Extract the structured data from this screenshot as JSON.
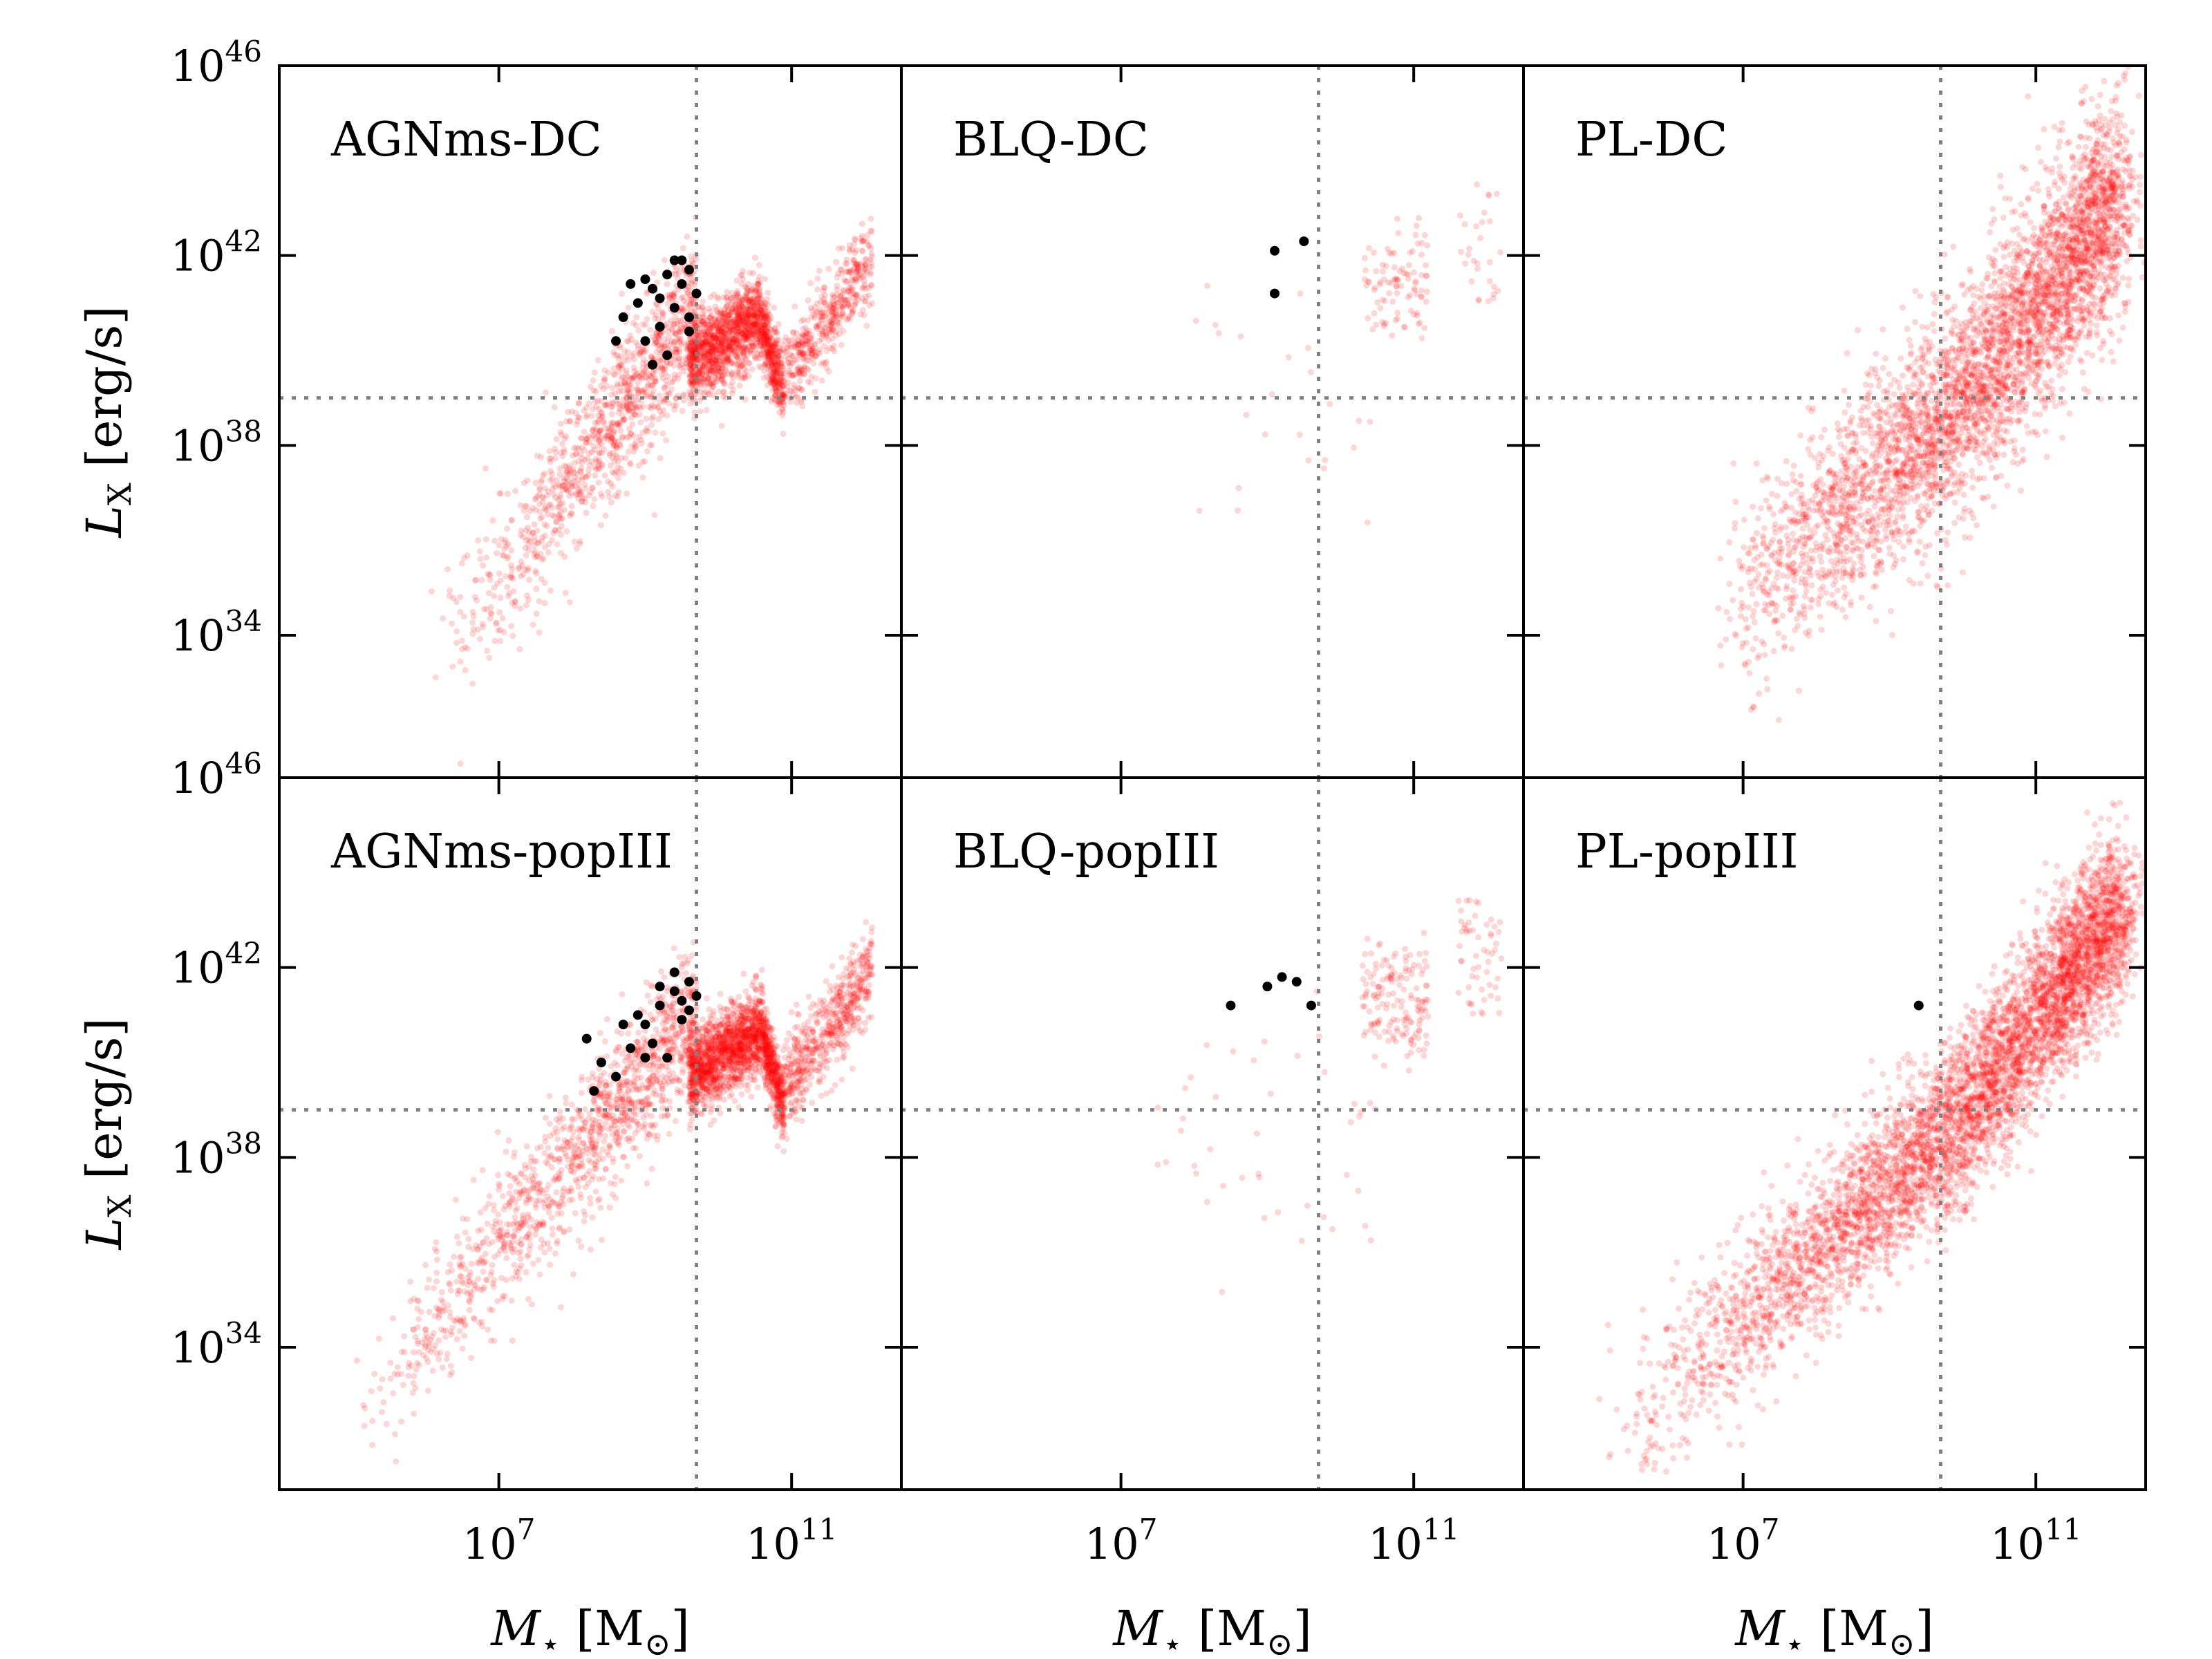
{
  "chart_data": [
    {
      "type": "scatter",
      "panel": "AGNms-DC",
      "title": "AGNms-DC",
      "xlabel": "M_star [M_sun]",
      "ylabel": "L_X [erg/s]",
      "xscale": "log",
      "yscale": "log",
      "xlim_log10": [
        4,
        12.5
      ],
      "ylim_log10": [
        31,
        46
      ],
      "vline_log10_x": 9.7,
      "hline_log10_y": 39,
      "red_cloud": "dense cloud rising from ~1e33 erg/s at 1e6 Msun to ~1e41 erg/s at 1e9.7 Msun, V-shaped dip to ~1e38.5 erg/s near 1e10.9 Msun, rising again to ~1e42 erg/s at 1e12",
      "black_points": [
        [
          8.7,
          40.7
        ],
        [
          8.9,
          41
        ],
        [
          9.1,
          41.3
        ],
        [
          9.3,
          41.6
        ],
        [
          9.5,
          41.4
        ],
        [
          9.6,
          41.7
        ],
        [
          9.0,
          40.2
        ],
        [
          9.2,
          40.5
        ],
        [
          9.4,
          40.9
        ],
        [
          9.1,
          39.7
        ],
        [
          9.3,
          39.9
        ],
        [
          9.6,
          40.4
        ],
        [
          8.8,
          41.4
        ],
        [
          9.5,
          41.9
        ],
        [
          9.7,
          41.2
        ],
        [
          9.0,
          41.5
        ],
        [
          9.4,
          41.9
        ],
        [
          9.6,
          40.7
        ],
        [
          9.2,
          41.1
        ],
        [
          8.6,
          40.2
        ]
      ]
    },
    {
      "type": "scatter",
      "panel": "BLQ-DC",
      "title": "BLQ-DC",
      "xlabel": "M_star [M_sun]",
      "ylabel": "",
      "xscale": "log",
      "yscale": "log",
      "xlim_log10": [
        4,
        12.5
      ],
      "ylim_log10": [
        31,
        46
      ],
      "vline_log10_x": 9.7,
      "hline_log10_y": 39,
      "red_cloud": "sparse points, cluster near 1e10.5-1e11 Msun at 1e40.5-1e42 erg/s",
      "black_points": [
        [
          9.1,
          42.1
        ],
        [
          9.5,
          42.3
        ],
        [
          9.1,
          41.2
        ]
      ]
    },
    {
      "type": "scatter",
      "panel": "PL-DC",
      "title": "PL-DC",
      "xlabel": "M_star [M_sun]",
      "ylabel": "",
      "xscale": "log",
      "yscale": "log",
      "xlim_log10": [
        4,
        12.5
      ],
      "ylim_log10": [
        31,
        46
      ],
      "vline_log10_x": 9.7,
      "hline_log10_y": 39,
      "red_cloud": "broad rising relation from ~1e34 erg/s at 1e6.5 Msun to ~1e42.5 erg/s at 1e12 Msun",
      "black_points": []
    },
    {
      "type": "scatter",
      "panel": "AGNms-popIII",
      "title": "AGNms-popIII",
      "xlabel": "M_star [M_sun]",
      "ylabel": "L_X [erg/s]",
      "xscale": "log",
      "yscale": "log",
      "xlim_log10": [
        4,
        12.5
      ],
      "ylim_log10": [
        31,
        46
      ],
      "vline_log10_x": 9.7,
      "hline_log10_y": 39,
      "red_cloud": "dense rising band from ~1e32 erg/s at 1e5 Msun to ~1e41 erg/s at 1e9.7 Msun, V-shaped dip near 1e10.9 Msun, rising to ~1e42 erg/s",
      "black_points": [
        [
          8.2,
          40.5
        ],
        [
          8.4,
          40
        ],
        [
          8.6,
          39.7
        ],
        [
          8.8,
          40.3
        ],
        [
          9.0,
          40.8
        ],
        [
          9.2,
          41.2
        ],
        [
          9.4,
          41.5
        ],
        [
          9.6,
          41.7
        ],
        [
          9.3,
          40.1
        ],
        [
          9.5,
          40.9
        ],
        [
          9.1,
          40.4
        ],
        [
          8.9,
          41
        ],
        [
          9.7,
          41.4
        ],
        [
          9.4,
          41.9
        ],
        [
          9.6,
          41.1
        ],
        [
          9.2,
          41.6
        ],
        [
          8.7,
          40.8
        ],
        [
          9.0,
          40.1
        ],
        [
          9.5,
          41.3
        ],
        [
          8.3,
          39.4
        ]
      ]
    },
    {
      "type": "scatter",
      "panel": "BLQ-popIII",
      "title": "BLQ-popIII",
      "xlabel": "M_star [M_sun]",
      "ylabel": "",
      "xscale": "log",
      "yscale": "log",
      "xlim_log10": [
        4,
        12.5
      ],
      "ylim_log10": [
        31,
        46
      ],
      "vline_log10_x": 9.7,
      "hline_log10_y": 39,
      "red_cloud": "sparse points from 1e7.5 to 1e12 Msun, clustering near 1e10.5-1e11 Msun at 1e40-1e42 erg/s",
      "black_points": [
        [
          8.5,
          41.2
        ],
        [
          9.0,
          41.6
        ],
        [
          9.2,
          41.8
        ],
        [
          9.4,
          41.7
        ],
        [
          9.6,
          41.2
        ]
      ]
    },
    {
      "type": "scatter",
      "panel": "PL-popIII",
      "title": "PL-popIII",
      "xlabel": "M_star [M_sun]",
      "ylabel": "",
      "xscale": "log",
      "yscale": "log",
      "xlim_log10": [
        4,
        12.5
      ],
      "ylim_log10": [
        31,
        46
      ],
      "vline_log10_x": 9.7,
      "hline_log10_y": 39,
      "red_cloud": "tight rising relation from ~1e31.5 erg/s at 1e5 Msun to ~1e42.5 erg/s at 1e12 Msun",
      "black_points": [
        [
          9.4,
          41.2
        ]
      ]
    }
  ],
  "axes": {
    "x_ticks": [
      {
        "value": 7,
        "base": "10",
        "exp": "7"
      },
      {
        "value": 11,
        "base": "10",
        "exp": "11"
      }
    ],
    "y_ticks": [
      {
        "value": 34,
        "base": "10",
        "exp": "34"
      },
      {
        "value": 38,
        "base": "10",
        "exp": "38"
      },
      {
        "value": 42,
        "base": "10",
        "exp": "42"
      },
      {
        "value": 46,
        "base": "10",
        "exp": "46"
      }
    ],
    "xlabel_main": "M",
    "xlabel_sub": "⋆",
    "xlabel_unit": " [M",
    "xlabel_unit_sub": "⊙",
    "xlabel_close": "]",
    "ylabel_main": "L",
    "ylabel_sub": "X",
    "ylabel_unit": " [erg/s]"
  },
  "colors": {
    "cloud": "#ff0000",
    "black": "#000000",
    "refline": "#808080"
  }
}
